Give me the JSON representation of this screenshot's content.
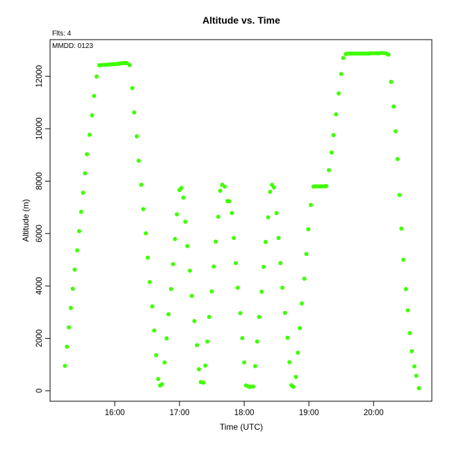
{
  "chart_data": {
    "type": "scatter",
    "title": "Altitude  vs. Time",
    "annotations": {
      "flights": "Flts: 4",
      "date": "MMDD: 0123"
    },
    "xlabel": "Time (UTC)",
    "ylabel": "Altitude (m)",
    "x_ticks": [
      "16:00",
      "17:00",
      "18:00",
      "19:00",
      "20:00"
    ],
    "y_ticks": [
      "0",
      "2000",
      "4000",
      "6000",
      "8000",
      "10000",
      "12000"
    ],
    "x_tick_values": [
      16,
      17,
      18,
      19,
      20
    ],
    "y_tick_values": [
      0,
      2000,
      4000,
      6000,
      8000,
      10000,
      12000
    ],
    "xlim": [
      15.0,
      20.9
    ],
    "ylim": [
      -400,
      13400
    ],
    "marker_color": "#3fff00",
    "grid": false,
    "x_unit": "hours UTC (decimal)",
    "series": [
      {
        "points": [
          [
            15.23,
            950
          ],
          [
            15.26,
            1680
          ],
          [
            15.29,
            2420
          ],
          [
            15.32,
            3160
          ],
          [
            15.35,
            3890
          ],
          [
            15.38,
            4620
          ],
          [
            15.42,
            5360
          ],
          [
            15.45,
            6090
          ],
          [
            15.48,
            6830
          ],
          [
            15.51,
            7560
          ],
          [
            15.54,
            8300
          ],
          [
            15.57,
            9030
          ],
          [
            15.61,
            9770
          ],
          [
            15.65,
            10510
          ],
          [
            15.68,
            11250
          ],
          [
            15.72,
            11990
          ],
          [
            15.76,
            12420
          ],
          [
            15.79,
            12430
          ],
          [
            15.83,
            12440
          ],
          [
            15.86,
            12440
          ],
          [
            15.9,
            12450
          ],
          [
            15.93,
            12450
          ],
          [
            15.96,
            12460
          ],
          [
            15.99,
            12460
          ],
          [
            16.03,
            12470
          ],
          [
            16.06,
            12480
          ],
          [
            16.09,
            12490
          ],
          [
            16.12,
            12500
          ],
          [
            16.16,
            12510
          ],
          [
            16.19,
            12500
          ],
          [
            16.23,
            12430
          ],
          [
            16.27,
            11550
          ],
          [
            16.3,
            10620
          ],
          [
            16.34,
            9710
          ],
          [
            16.37,
            8780
          ],
          [
            16.41,
            7860
          ],
          [
            16.44,
            6930
          ],
          [
            16.48,
            6010
          ],
          [
            16.51,
            5080
          ],
          [
            16.54,
            4150
          ],
          [
            16.58,
            3220
          ],
          [
            16.61,
            2300
          ],
          [
            16.64,
            1360
          ],
          [
            16.67,
            450
          ],
          [
            16.7,
            200
          ],
          [
            16.73,
            250
          ],
          [
            16.77,
            1080
          ],
          [
            16.8,
            2000
          ],
          [
            16.83,
            2920
          ],
          [
            16.87,
            3880
          ],
          [
            16.9,
            4830
          ],
          [
            16.93,
            5790
          ],
          [
            16.96,
            6730
          ],
          [
            17.0,
            7660
          ],
          [
            17.03,
            7740
          ],
          [
            17.06,
            7370
          ],
          [
            17.09,
            6450
          ],
          [
            17.12,
            5520
          ],
          [
            17.16,
            4580
          ],
          [
            17.19,
            3620
          ],
          [
            17.23,
            2660
          ],
          [
            17.27,
            1740
          ],
          [
            17.3,
            820
          ],
          [
            17.33,
            330
          ],
          [
            17.37,
            310
          ],
          [
            17.4,
            960
          ],
          [
            17.43,
            1880
          ],
          [
            17.46,
            2820
          ],
          [
            17.5,
            3790
          ],
          [
            17.53,
            4740
          ],
          [
            17.56,
            5690
          ],
          [
            17.6,
            6640
          ],
          [
            17.63,
            7630
          ],
          [
            17.66,
            7860
          ],
          [
            17.7,
            7790
          ],
          [
            17.74,
            7240
          ],
          [
            17.77,
            7230
          ],
          [
            17.81,
            6780
          ],
          [
            17.84,
            5830
          ],
          [
            17.87,
            4870
          ],
          [
            17.9,
            3930
          ],
          [
            17.94,
            2960
          ],
          [
            17.97,
            2010
          ],
          [
            18.0,
            1080
          ],
          [
            18.03,
            200
          ],
          [
            18.07,
            160
          ],
          [
            18.1,
            150
          ],
          [
            18.14,
            160
          ],
          [
            18.17,
            940
          ],
          [
            18.2,
            1880
          ],
          [
            18.23,
            2820
          ],
          [
            18.27,
            3780
          ],
          [
            18.3,
            4730
          ],
          [
            18.33,
            5680
          ],
          [
            18.37,
            6620
          ],
          [
            18.4,
            7590
          ],
          [
            18.43,
            7860
          ],
          [
            18.46,
            7760
          ],
          [
            18.5,
            6780
          ],
          [
            18.53,
            5830
          ],
          [
            18.56,
            4870
          ],
          [
            18.59,
            3930
          ],
          [
            18.63,
            2970
          ],
          [
            18.67,
            2020
          ],
          [
            18.7,
            1090
          ],
          [
            18.73,
            210
          ],
          [
            18.76,
            150
          ],
          [
            18.8,
            530
          ],
          [
            18.83,
            1450
          ],
          [
            18.86,
            2390
          ],
          [
            18.89,
            3330
          ],
          [
            18.93,
            4280
          ],
          [
            18.96,
            5220
          ],
          [
            18.99,
            6160
          ],
          [
            19.03,
            7090
          ],
          [
            19.07,
            7790
          ],
          [
            19.1,
            7800
          ],
          [
            19.13,
            7800
          ],
          [
            19.17,
            7800
          ],
          [
            19.2,
            7800
          ],
          [
            19.24,
            7800
          ],
          [
            19.27,
            7810
          ],
          [
            19.31,
            8420
          ],
          [
            19.35,
            9090
          ],
          [
            19.38,
            9760
          ],
          [
            19.42,
            10550
          ],
          [
            19.46,
            11350
          ],
          [
            19.5,
            12090
          ],
          [
            19.53,
            12700
          ],
          [
            19.57,
            12850
          ],
          [
            19.6,
            12870
          ],
          [
            19.64,
            12870
          ],
          [
            19.68,
            12870
          ],
          [
            19.72,
            12870
          ],
          [
            19.76,
            12870
          ],
          [
            19.8,
            12870
          ],
          [
            19.84,
            12870
          ],
          [
            19.88,
            12870
          ],
          [
            19.92,
            12870
          ],
          [
            19.96,
            12880
          ],
          [
            20.0,
            12880
          ],
          [
            20.04,
            12880
          ],
          [
            20.08,
            12880
          ],
          [
            20.12,
            12890
          ],
          [
            20.16,
            12890
          ],
          [
            20.2,
            12860
          ],
          [
            20.23,
            12830
          ],
          [
            20.27,
            11790
          ],
          [
            20.31,
            10850
          ],
          [
            20.34,
            9900
          ],
          [
            20.37,
            8840
          ],
          [
            20.4,
            7470
          ],
          [
            20.43,
            6190
          ],
          [
            20.46,
            5000
          ],
          [
            20.5,
            3880
          ],
          [
            20.53,
            3070
          ],
          [
            20.56,
            2200
          ],
          [
            20.59,
            1510
          ],
          [
            20.63,
            930
          ],
          [
            20.66,
            570
          ],
          [
            20.7,
            100
          ]
        ]
      }
    ]
  }
}
